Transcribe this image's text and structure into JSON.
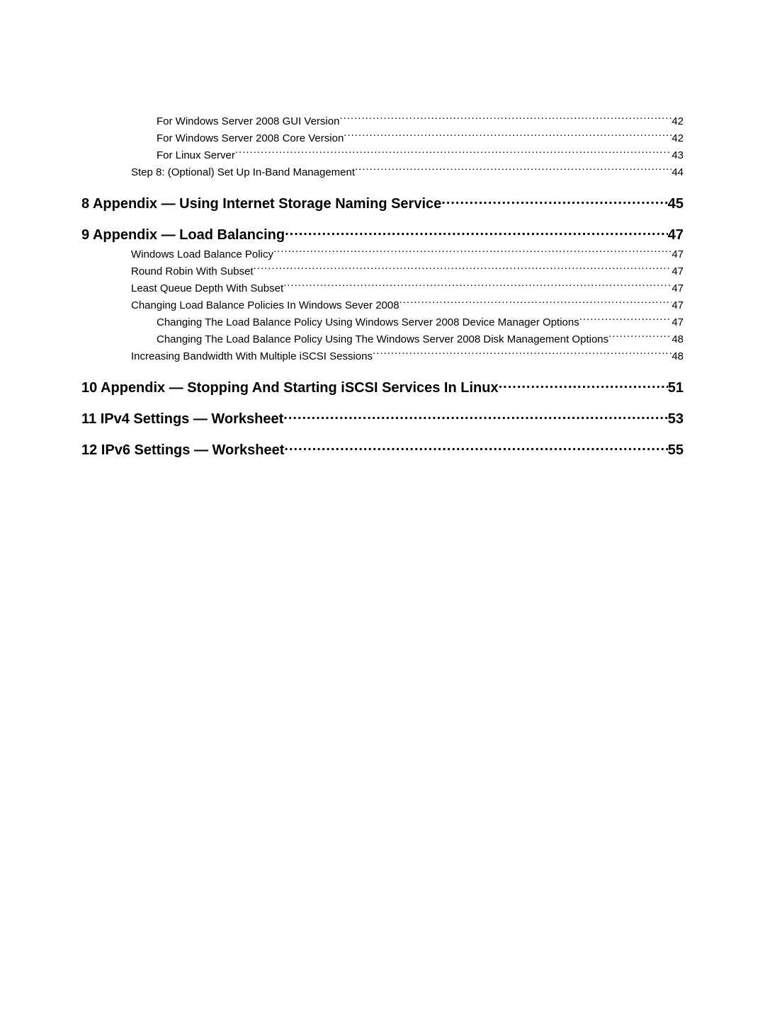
{
  "toc": {
    "entries": [
      {
        "level": "lvl-3",
        "label": "For Windows Server 2008 GUI Version",
        "page": "42"
      },
      {
        "level": "lvl-3",
        "label": "For Windows Server 2008 Core Version",
        "page": "42"
      },
      {
        "level": "lvl-3",
        "label": "For Linux Server",
        "page": "43"
      },
      {
        "level": "lvl-2",
        "label": "Step 8: (Optional) Set Up In-Band Management",
        "page": "44"
      },
      {
        "level": "lvl-h",
        "label": "8 Appendix — Using Internet Storage Naming Service",
        "page": "45"
      },
      {
        "level": "lvl-h",
        "label": "9 Appendix — Load Balancing",
        "page": "47"
      },
      {
        "level": "lvl-2",
        "label": "Windows Load Balance Policy",
        "page": "47"
      },
      {
        "level": "lvl-2",
        "label": "Round Robin With Subset",
        "page": "47"
      },
      {
        "level": "lvl-2",
        "label": "Least Queue Depth With Subset",
        "page": "47"
      },
      {
        "level": "lvl-2",
        "label": "Changing Load Balance Policies In Windows Sever 2008 ",
        "page": "47"
      },
      {
        "level": "lvl-3",
        "label": "Changing The Load Balance Policy Using Windows Server 2008 Device Manager Options",
        "page": "47"
      },
      {
        "level": "lvl-3",
        "label": "Changing The Load Balance Policy Using The Windows Server 2008 Disk Management Options",
        "page": "48"
      },
      {
        "level": "lvl-2",
        "label": "Increasing Bandwidth With Multiple iSCSI Sessions",
        "page": "48"
      },
      {
        "level": "lvl-h",
        "label": "10 Appendix — Stopping And Starting iSCSI Services In Linux",
        "page": "51"
      },
      {
        "level": "lvl-h",
        "label": "11 IPv4 Settings — Worksheet",
        "page": "53"
      },
      {
        "level": "lvl-h",
        "label": "12 IPv6 Settings — Worksheet",
        "page": "55"
      }
    ]
  }
}
